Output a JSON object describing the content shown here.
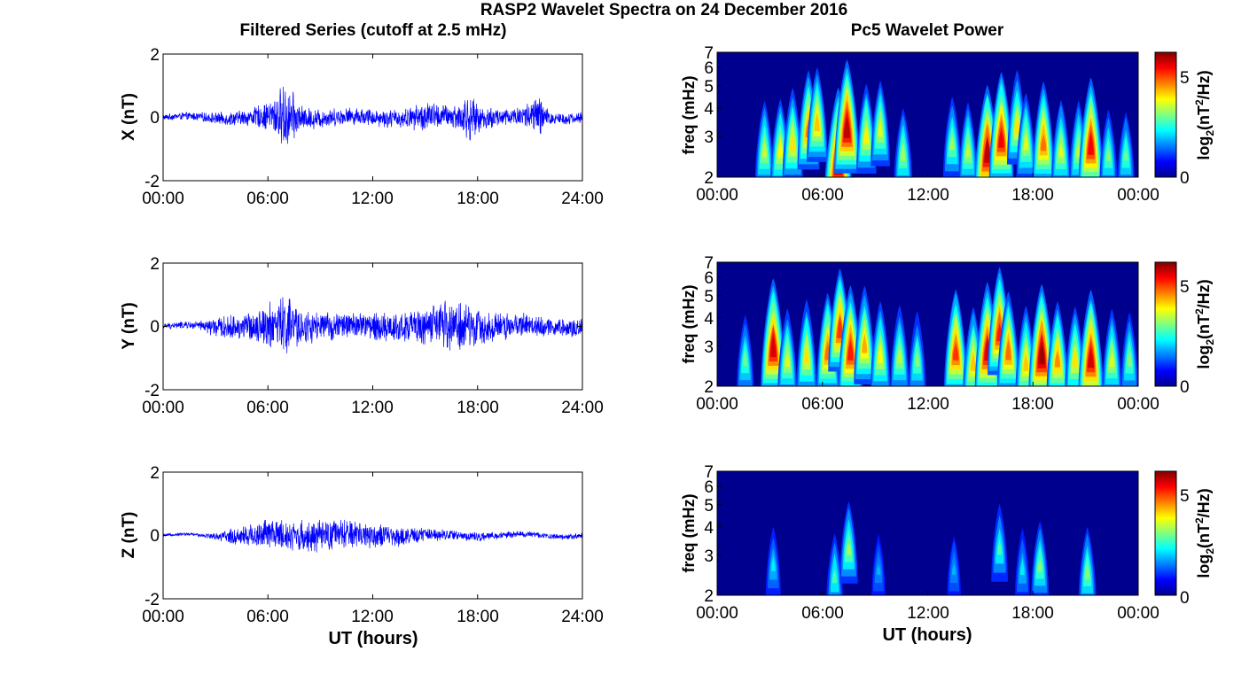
{
  "title": "RASP2 Wavelet Spectra on 24 December 2016",
  "left_title": "Filtered Series (cutoff at 2.5 mHz)",
  "right_title": "Pc5 Wavelet Power",
  "xlabel": "UT (hours)",
  "spec_ylabel": "freq (mHz)",
  "cbar_label": "log2(nT2/Hz)",
  "cbar_label_parts": {
    "prefix": "log",
    "sub": "2",
    "mid": "(nT",
    "sup": "2",
    "suffix": "/Hz)"
  },
  "colors": {
    "series_line": "#0000ff",
    "spectrum_background": "#00008f"
  },
  "chart_data": [
    {
      "type": "line",
      "panel": "X",
      "ylabel": "X (nT)",
      "ylim": [
        -2,
        2
      ],
      "yticks": [
        "2",
        "0",
        "-2"
      ],
      "xlim": [
        0,
        24
      ],
      "xticks": [
        "00:00",
        "06:00",
        "12:00",
        "18:00",
        "24:00"
      ],
      "envelope": [
        [
          0,
          0.1
        ],
        [
          2,
          0.15
        ],
        [
          3,
          0.2
        ],
        [
          5,
          0.3
        ],
        [
          6,
          0.5
        ],
        [
          6.5,
          0.8
        ],
        [
          7,
          1.2
        ],
        [
          7.5,
          0.8
        ],
        [
          8,
          0.4
        ],
        [
          10,
          0.3
        ],
        [
          12,
          0.3
        ],
        [
          14,
          0.35
        ],
        [
          15,
          0.55
        ],
        [
          16,
          0.4
        ],
        [
          17,
          0.5
        ],
        [
          17.5,
          0.9
        ],
        [
          18,
          0.45
        ],
        [
          20,
          0.3
        ],
        [
          21,
          0.5
        ],
        [
          21.5,
          0.85
        ],
        [
          22,
          0.3
        ],
        [
          23,
          0.2
        ],
        [
          24,
          0.2
        ]
      ]
    },
    {
      "type": "line",
      "panel": "Y",
      "ylabel": "Y (nT)",
      "ylim": [
        -2,
        2
      ],
      "yticks": [
        "2",
        "0",
        "-2"
      ],
      "xlim": [
        0,
        24
      ],
      "xticks": [
        "00:00",
        "06:00",
        "12:00",
        "18:00",
        "24:00"
      ],
      "envelope": [
        [
          0,
          0.1
        ],
        [
          2,
          0.15
        ],
        [
          3,
          0.35
        ],
        [
          5,
          0.5
        ],
        [
          6,
          0.75
        ],
        [
          7,
          1.15
        ],
        [
          8,
          0.6
        ],
        [
          10,
          0.45
        ],
        [
          12,
          0.5
        ],
        [
          14,
          0.55
        ],
        [
          16,
          0.8
        ],
        [
          17,
          1.0
        ],
        [
          18,
          0.6
        ],
        [
          19,
          0.55
        ],
        [
          20,
          0.45
        ],
        [
          22,
          0.35
        ],
        [
          24,
          0.3
        ]
      ]
    },
    {
      "type": "line",
      "panel": "Z",
      "ylabel": "Z (nT)",
      "ylim": [
        -2,
        2
      ],
      "yticks": [
        "2",
        "0",
        "-2"
      ],
      "xlim": [
        0,
        24
      ],
      "xticks": [
        "00:00",
        "06:00",
        "12:00",
        "18:00",
        "24:00"
      ],
      "envelope": [
        [
          0,
          0.05
        ],
        [
          2,
          0.06
        ],
        [
          3,
          0.12
        ],
        [
          4,
          0.3
        ],
        [
          6,
          0.55
        ],
        [
          8,
          0.55
        ],
        [
          10,
          0.55
        ],
        [
          12,
          0.45
        ],
        [
          14,
          0.3
        ],
        [
          16,
          0.2
        ],
        [
          18,
          0.15
        ],
        [
          20,
          0.12
        ],
        [
          22,
          0.1
        ],
        [
          24,
          0.1
        ]
      ]
    },
    {
      "type": "heatmap",
      "panel": "X",
      "ylabel": "freq (mHz)",
      "yscale": "log",
      "ylim": [
        2,
        7
      ],
      "yticks": [
        "2",
        "3",
        "4",
        "5",
        "6",
        "7"
      ],
      "xlim": [
        0,
        24
      ],
      "xticks": [
        "00:00",
        "06:00",
        "12:00",
        "18:00",
        "00:00"
      ],
      "colorbar": {
        "range": [
          0,
          6
        ],
        "ticks": [
          "0",
          "5"
        ]
      },
      "blobs": [
        [
          2.7,
          2.6,
          3.0
        ],
        [
          3.6,
          2.6,
          3.4
        ],
        [
          4.3,
          2.8,
          3.6
        ],
        [
          5.2,
          3.2,
          4.3
        ],
        [
          5.7,
          3.4,
          3.8
        ],
        [
          6.9,
          2.3,
          5.9
        ],
        [
          7.4,
          3.2,
          5.6
        ],
        [
          8.5,
          3.0,
          3.5
        ],
        [
          9.3,
          3.2,
          3.2
        ],
        [
          10.6,
          2.5,
          2.8
        ],
        [
          13.4,
          2.8,
          2.8
        ],
        [
          14.3,
          2.6,
          3.0
        ],
        [
          15.4,
          2.5,
          5.6
        ],
        [
          16.2,
          2.9,
          5.2
        ],
        [
          17.1,
          3.3,
          3.6
        ],
        [
          17.6,
          2.8,
          3.2
        ],
        [
          18.6,
          2.8,
          4.4
        ],
        [
          19.6,
          2.6,
          3.2
        ],
        [
          20.6,
          2.6,
          3.0
        ],
        [
          21.3,
          2.7,
          5.2
        ],
        [
          22.3,
          2.5,
          2.6
        ],
        [
          23.3,
          2.5,
          2.4
        ]
      ]
    },
    {
      "type": "heatmap",
      "panel": "Y",
      "ylabel": "freq (mHz)",
      "yscale": "log",
      "ylim": [
        2,
        7
      ],
      "yticks": [
        "2",
        "3",
        "4",
        "5",
        "6",
        "7"
      ],
      "xlim": [
        0,
        24
      ],
      "xticks": [
        "00:00",
        "06:00",
        "12:00",
        "18:00",
        "00:00"
      ],
      "colorbar": {
        "range": [
          0,
          6
        ],
        "ticks": [
          "0",
          "5"
        ]
      },
      "blobs": [
        [
          1.6,
          2.6,
          2.4
        ],
        [
          3.2,
          2.9,
          5.4
        ],
        [
          4.0,
          2.6,
          3.2
        ],
        [
          5.1,
          2.7,
          3.6
        ],
        [
          6.3,
          2.8,
          4.4
        ],
        [
          7.0,
          3.5,
          4.8
        ],
        [
          7.6,
          2.8,
          5.0
        ],
        [
          8.4,
          3.0,
          4.0
        ],
        [
          9.3,
          2.7,
          3.4
        ],
        [
          10.4,
          2.7,
          3.0
        ],
        [
          11.4,
          2.6,
          2.6
        ],
        [
          13.6,
          2.8,
          4.8
        ],
        [
          14.6,
          2.5,
          3.8
        ],
        [
          15.4,
          2.8,
          5.4
        ],
        [
          16.1,
          3.4,
          5.0
        ],
        [
          16.6,
          2.8,
          4.4
        ],
        [
          17.6,
          2.5,
          3.8
        ],
        [
          18.5,
          2.7,
          5.8
        ],
        [
          19.4,
          2.6,
          4.2
        ],
        [
          20.4,
          2.6,
          3.6
        ],
        [
          21.3,
          2.6,
          5.4
        ],
        [
          22.5,
          2.6,
          3.2
        ],
        [
          23.5,
          2.6,
          2.6
        ]
      ]
    },
    {
      "type": "heatmap",
      "panel": "Z",
      "ylabel": "freq (mHz)",
      "yscale": "log",
      "ylim": [
        2,
        7
      ],
      "yticks": [
        "2",
        "3",
        "4",
        "5",
        "6",
        "7"
      ],
      "xlim": [
        0,
        24
      ],
      "xticks": [
        "00:00",
        "06:00",
        "12:00",
        "18:00",
        "00:00"
      ],
      "colorbar": {
        "range": [
          0,
          6
        ],
        "ticks": [
          "0",
          "5"
        ]
      },
      "blobs": [
        [
          3.2,
          2.7,
          1.6
        ],
        [
          6.7,
          2.4,
          2.2
        ],
        [
          7.5,
          3.2,
          2.8
        ],
        [
          9.2,
          2.6,
          1.2
        ],
        [
          13.5,
          2.6,
          1.2
        ],
        [
          16.1,
          3.2,
          2.2
        ],
        [
          17.4,
          2.6,
          1.6
        ],
        [
          18.4,
          2.7,
          2.6
        ],
        [
          21.1,
          2.5,
          2.6
        ]
      ]
    }
  ]
}
